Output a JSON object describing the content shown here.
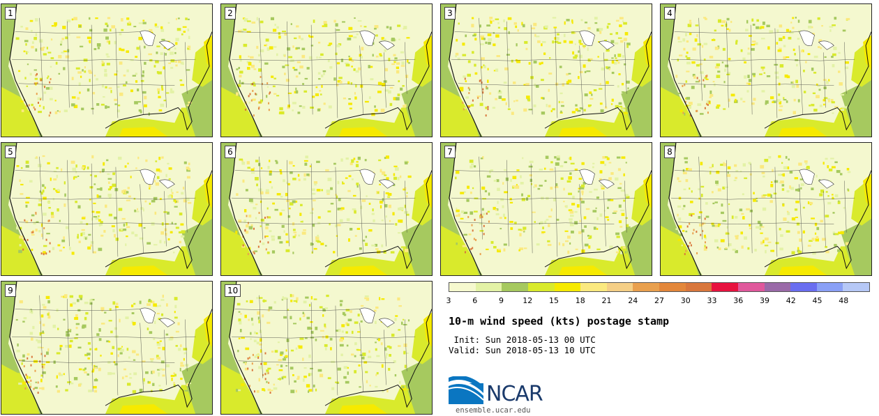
{
  "panels": [
    {
      "label": "1"
    },
    {
      "label": "2"
    },
    {
      "label": "3"
    },
    {
      "label": "4"
    },
    {
      "label": "5"
    },
    {
      "label": "6"
    },
    {
      "label": "7"
    },
    {
      "label": "8"
    },
    {
      "label": "9"
    },
    {
      "label": "10"
    }
  ],
  "colorbar": {
    "ticks": [
      "3",
      "6",
      "9",
      "12",
      "15",
      "18",
      "21",
      "24",
      "27",
      "30",
      "33",
      "36",
      "39",
      "42",
      "45",
      "48"
    ],
    "colors": [
      "#f6f9cf",
      "#e3f2a6",
      "#a6c95f",
      "#d9ea2c",
      "#f6ea00",
      "#fbe97f",
      "#f5cf86",
      "#e9a04e",
      "#e3873b",
      "#d9773d",
      "#e8123f",
      "#e0589c",
      "#9a6aa8",
      "#6a6ef0",
      "#8aa0f6",
      "#b6c8f6"
    ]
  },
  "title": "10-m wind speed (kts) postage stamp",
  "init_line": " Init: Sun 2018-05-13 00 UTC",
  "valid_line": "Valid: Sun 2018-05-13 10 UTC",
  "logo": {
    "text": "NCAR",
    "color": "#1a3a6b",
    "accent": "#0a76c1"
  },
  "url": "ensemble.ucar.edu"
}
